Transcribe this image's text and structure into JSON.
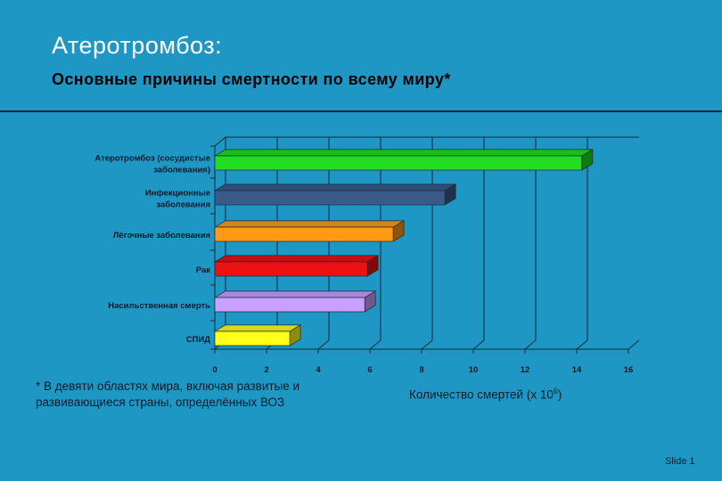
{
  "header": {
    "title": "Атеротромбоз:",
    "subtitle": "Основные причины смертности по всему миру*"
  },
  "footnote": "* В девяти областях мира, включая развитые и развивающиеся страны, определённых ВОЗ",
  "x_axis_label": {
    "text": "Количество смертей (х 10",
    "exponent": "6",
    "suffix": ")"
  },
  "slide_label": "Slide 1",
  "chart_data": {
    "type": "bar",
    "orientation": "horizontal",
    "categories": [
      [
        "Атеротромбоз (сосудистые",
        "заболевания)"
      ],
      [
        "Инфекционные",
        "заболевания"
      ],
      [
        "Лёгочные заболевания"
      ],
      [
        "Рак"
      ],
      [
        "Насильственная смерть"
      ],
      [
        "СПИД"
      ]
    ],
    "values": [
      14.2,
      8.9,
      6.9,
      5.9,
      5.8,
      2.9
    ],
    "colors": [
      "#22dd22",
      "#3a5a8a",
      "#ff9a14",
      "#ee1111",
      "#c8a0ff",
      "#ffff1a"
    ],
    "xlim": [
      0,
      16
    ],
    "xticks": [
      "0",
      "2",
      "4",
      "6",
      "8",
      "10",
      "12",
      "14",
      "16"
    ],
    "grid": "vertical",
    "style": "3d"
  }
}
